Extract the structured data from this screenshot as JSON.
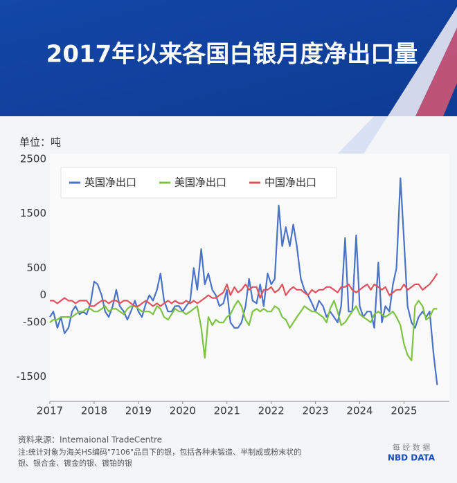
{
  "chart_data": {
    "type": "line",
    "title": "2017年以来各国白银月度净出口量",
    "unit_label": "单位：吨",
    "source": "资料来源：Intemaional TradeCentre",
    "notes": [
      "注:统计对象为海关HS编码\"7106\"品目下的银，包括各种未锻造、半制成或粉末状的",
      "银、银合金、镀金的银、镀铂的银"
    ],
    "logo": [
      "每 经 数 据",
      "NBD DATA"
    ],
    "xlim": [
      2017,
      2025.9
    ],
    "xticks": [
      2017,
      2018,
      2019,
      2020,
      2021,
      2022,
      2023,
      2024,
      2025
    ],
    "ylim": [
      -1950,
      2500
    ],
    "yticks": [
      -1500,
      -500,
      0,
      500,
      1500,
      2500
    ],
    "grid": false,
    "legend": "top-left",
    "x": [
      2017.0,
      2017.08,
      2017.17,
      2017.25,
      2017.33,
      2017.42,
      2017.5,
      2017.58,
      2017.67,
      2017.75,
      2017.83,
      2017.92,
      2018.0,
      2018.08,
      2018.17,
      2018.25,
      2018.33,
      2018.42,
      2018.5,
      2018.58,
      2018.67,
      2018.75,
      2018.83,
      2018.92,
      2019.0,
      2019.08,
      2019.17,
      2019.25,
      2019.33,
      2019.42,
      2019.5,
      2019.58,
      2019.67,
      2019.75,
      2019.83,
      2019.92,
      2020.0,
      2020.08,
      2020.17,
      2020.25,
      2020.33,
      2020.42,
      2020.5,
      2020.58,
      2020.67,
      2020.75,
      2020.83,
      2020.92,
      2021.0,
      2021.08,
      2021.17,
      2021.25,
      2021.33,
      2021.42,
      2021.5,
      2021.58,
      2021.67,
      2021.75,
      2021.83,
      2021.92,
      2022.0,
      2022.08,
      2022.17,
      2022.25,
      2022.33,
      2022.42,
      2022.5,
      2022.58,
      2022.67,
      2022.75,
      2022.83,
      2022.92,
      2023.0,
      2023.08,
      2023.17,
      2023.25,
      2023.33,
      2023.42,
      2023.5,
      2023.58,
      2023.67,
      2023.75,
      2023.83,
      2023.92,
      2024.0,
      2024.08,
      2024.17,
      2024.25,
      2024.33,
      2024.42,
      2024.5,
      2024.58,
      2024.67,
      2024.75,
      2024.83,
      2024.92,
      2025.0,
      2025.08,
      2025.17,
      2025.25,
      2025.33,
      2025.42,
      2025.5,
      2025.58,
      2025.67,
      2025.75
    ],
    "series": [
      {
        "name": "英国净出口",
        "color": "#4a72c6",
        "values": [
          -400,
          -300,
          -600,
          -400,
          -700,
          -600,
          -300,
          -200,
          -350,
          -300,
          -350,
          -150,
          250,
          200,
          0,
          -300,
          -400,
          -200,
          100,
          -200,
          -300,
          -450,
          -300,
          -100,
          -300,
          -400,
          -150,
          0,
          -100,
          100,
          400,
          -100,
          -300,
          -300,
          -200,
          -200,
          -300,
          -200,
          -100,
          500,
          100,
          850,
          200,
          400,
          100,
          0,
          -200,
          -150,
          100,
          -500,
          -600,
          -600,
          -500,
          -200,
          300,
          -100,
          -150,
          200,
          -200,
          400,
          200,
          300,
          1650,
          900,
          1250,
          900,
          1300,
          900,
          300,
          100,
          0,
          -150,
          -300,
          -100,
          -200,
          -400,
          -300,
          -400,
          -500,
          -200,
          1050,
          -300,
          -300,
          1100,
          -200,
          -400,
          -300,
          -300,
          -600,
          600,
          -500,
          -200,
          -300,
          200,
          500,
          2150,
          1000,
          -200,
          -500,
          -600,
          -400,
          -300,
          -400,
          -300,
          -1100,
          -1650
        ]
      },
      {
        "name": "美国净出口",
        "color": "#7cc243",
        "values": [
          -500,
          -450,
          -450,
          -400,
          -400,
          -400,
          -400,
          -350,
          -300,
          -300,
          -250,
          -250,
          -300,
          -300,
          -250,
          -200,
          -300,
          -250,
          -250,
          -300,
          -350,
          -250,
          -200,
          -200,
          -250,
          -300,
          -300,
          -300,
          -350,
          -200,
          -250,
          -400,
          -450,
          -350,
          -250,
          -300,
          -300,
          -350,
          -300,
          -250,
          -200,
          -600,
          -1150,
          -400,
          -550,
          -450,
          -500,
          -500,
          -400,
          -350,
          -200,
          -100,
          -200,
          -450,
          -550,
          -300,
          -250,
          -300,
          -250,
          -300,
          -300,
          -200,
          -250,
          -400,
          -450,
          -600,
          -500,
          -400,
          -300,
          -200,
          -250,
          -300,
          -300,
          -350,
          -400,
          -500,
          -250,
          -100,
          -300,
          -550,
          -500,
          -400,
          -300,
          -200,
          -350,
          -400,
          -450,
          -500,
          -350,
          -300,
          -350,
          -400,
          -350,
          -300,
          -400,
          -550,
          -900,
          -1100,
          -1200,
          -200,
          -100,
          -200,
          -450,
          -400,
          -250,
          -250
        ]
      },
      {
        "name": "中国净出口",
        "color": "#e0515e",
        "values": [
          -100,
          -100,
          -150,
          -100,
          -50,
          -100,
          -100,
          -150,
          -100,
          -100,
          -100,
          -200,
          -200,
          -150,
          -100,
          -100,
          -150,
          -100,
          -100,
          -150,
          -100,
          -100,
          -150,
          -200,
          -200,
          -150,
          -100,
          -150,
          -200,
          -150,
          -200,
          -150,
          -100,
          -150,
          -100,
          -150,
          -150,
          -100,
          -150,
          -100,
          -150,
          -100,
          -50,
          0,
          -50,
          -50,
          0,
          50,
          200,
          0,
          150,
          50,
          100,
          200,
          100,
          150,
          150,
          -50,
          100,
          100,
          150,
          50,
          100,
          200,
          0,
          100,
          150,
          100,
          100,
          50,
          0,
          100,
          50,
          100,
          100,
          150,
          150,
          100,
          50,
          150,
          150,
          200,
          100,
          50,
          100,
          150,
          200,
          100,
          200,
          150,
          100,
          150,
          0,
          50,
          100,
          100,
          200,
          100,
          150,
          200,
          200,
          100,
          150,
          200,
          300,
          400
        ]
      }
    ]
  }
}
